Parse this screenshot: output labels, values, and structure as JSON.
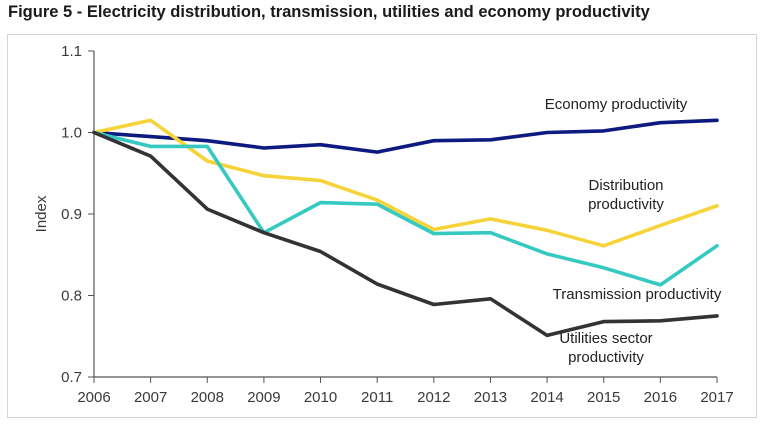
{
  "figure_title": "Figure 5 - Electricity distribution, transmission, utilities and economy productivity",
  "chart_data": {
    "type": "line",
    "title": "Figure 5 - Electricity distribution, transmission, utilities and economy productivity",
    "xlabel": "",
    "ylabel": "Index",
    "x": [
      2006,
      2007,
      2008,
      2009,
      2010,
      2011,
      2012,
      2013,
      2014,
      2015,
      2016,
      2017
    ],
    "xlim": [
      2006,
      2017
    ],
    "ylim": [
      0.7,
      1.1
    ],
    "yticks": [
      "0.7",
      "0.8",
      "0.9",
      "1.0",
      "1.1"
    ],
    "grid": false,
    "legend": "inline labels",
    "series": [
      {
        "name": "Economy productivity",
        "label_lines": [
          "Economy productivity"
        ],
        "color": "#0d1a80",
        "values": [
          1.0,
          0.995,
          0.99,
          0.981,
          0.985,
          0.976,
          0.99,
          0.991,
          1.0,
          1.002,
          1.012,
          1.015
        ]
      },
      {
        "name": "Distribution productivity",
        "label_lines": [
          "Distribution",
          "productivity"
        ],
        "color": "#f7d33a",
        "values": [
          1.0,
          1.015,
          0.965,
          0.947,
          0.941,
          0.917,
          0.881,
          0.894,
          0.88,
          0.861,
          0.886,
          0.91
        ]
      },
      {
        "name": "Transmission productivity",
        "label_lines": [
          "Transmission productivity"
        ],
        "color": "#35c9c2",
        "values": [
          1.0,
          0.983,
          0.983,
          0.877,
          0.914,
          0.912,
          0.876,
          0.877,
          0.851,
          0.834,
          0.813,
          0.861
        ]
      },
      {
        "name": "Utilities sector productivity",
        "label_lines": [
          "Utilities sector",
          "productivity"
        ],
        "color": "#333333",
        "values": [
          1.0,
          0.971,
          0.906,
          0.877,
          0.854,
          0.814,
          0.789,
          0.796,
          0.751,
          0.768,
          0.769,
          0.775
        ]
      }
    ]
  }
}
